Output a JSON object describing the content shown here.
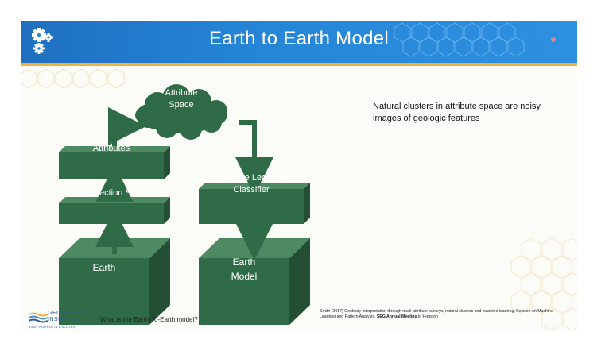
{
  "slide": {
    "title": "Earth to Earth Model",
    "diagram": {
      "cloud": "Attribute\nSpace",
      "boxes": {
        "attributes": "Attributes",
        "survey": "3D Reflection Survey",
        "earth": "Earth",
        "classifier": "Machine Learning\nClassifier",
        "earth_model": "Earth\nModel"
      }
    },
    "caption": "Natural clusters in attribute space are noisy images of geologic features",
    "footer": {
      "question": "What is the Earth-To-Earth model?",
      "reference_prefix": "Smith (2017) Geobody interpretation through multi-attribute surveys, natural clusters and machine learning, Session on Machine Learning and Pattern Analysis, ",
      "reference_event": "SEG Annual Meeting",
      "reference_suffix": " in Houston"
    },
    "logo": {
      "line1": "GEOPHYSICAL",
      "line2": "INSIGHTS",
      "tagline": "YOUR PARTNER IN DISCOVERY"
    },
    "colors": {
      "banner": "#2584d6",
      "accent": "#f0b23a",
      "box_green": "#2f6b46",
      "arrow_green": "#2f6b46"
    },
    "icons": [
      "gears-icon",
      "record-dot-icon"
    ]
  }
}
